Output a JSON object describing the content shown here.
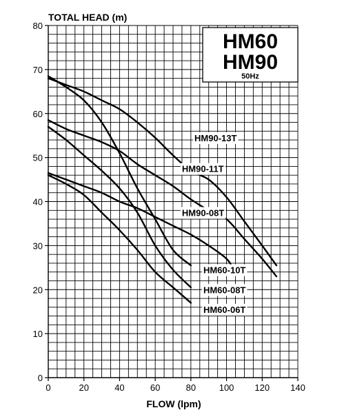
{
  "chart_data": {
    "type": "line",
    "ylabel": "TOTAL HEAD (m)",
    "xlabel": "FLOW (lpm)",
    "xlim": [
      0,
      140
    ],
    "ylim": [
      0,
      80
    ],
    "x_ticks": [
      0,
      20,
      40,
      60,
      80,
      100,
      120,
      140
    ],
    "y_ticks": [
      0,
      10,
      20,
      30,
      40,
      50,
      60,
      70,
      80
    ],
    "grid": true,
    "legend_box": {
      "models": [
        "HM60",
        "HM90"
      ],
      "frequency": "50Hz",
      "placement": "top-right"
    },
    "series": [
      {
        "name": "HM90-13T",
        "x": [
          0,
          10,
          20,
          30,
          40,
          50,
          60,
          70,
          80,
          90,
          100,
          110,
          120,
          128
        ],
        "y": [
          68,
          66.5,
          65,
          63,
          61,
          58,
          54.5,
          50.5,
          47,
          45,
          41,
          35.5,
          30,
          25.5
        ]
      },
      {
        "name": "HM90-11T",
        "x": [
          0,
          10,
          20,
          30,
          40,
          50,
          60,
          70,
          80,
          90,
          100,
          110,
          120,
          128
        ],
        "y": [
          58.5,
          56.5,
          55,
          53.5,
          51.5,
          48.5,
          46,
          43.5,
          40.5,
          38,
          36,
          31.5,
          27,
          23
        ]
      },
      {
        "name": "HM90-08T",
        "x": [
          0,
          10,
          20,
          30,
          40,
          50,
          60,
          70,
          80,
          90,
          100,
          105
        ],
        "y": [
          46.5,
          45,
          43.5,
          42,
          40,
          38.5,
          36.5,
          34.5,
          32.5,
          30,
          27,
          24
        ]
      },
      {
        "name": "HM60-10T",
        "x": [
          0,
          10,
          20,
          30,
          40,
          50,
          60,
          70,
          80
        ],
        "y": [
          68.5,
          66,
          63,
          58,
          51,
          43,
          36,
          29,
          25.5
        ]
      },
      {
        "name": "HM60-08T",
        "x": [
          0,
          10,
          20,
          30,
          40,
          50,
          60,
          70,
          80
        ],
        "y": [
          57,
          54,
          50.5,
          47,
          43,
          37.5,
          30,
          24.5,
          20.5
        ]
      },
      {
        "name": "HM60-06T",
        "x": [
          0,
          10,
          20,
          30,
          40,
          50,
          60,
          70,
          80
        ],
        "y": [
          46,
          44,
          41.5,
          37.5,
          33.5,
          29,
          24,
          20.5,
          17
        ]
      }
    ]
  }
}
